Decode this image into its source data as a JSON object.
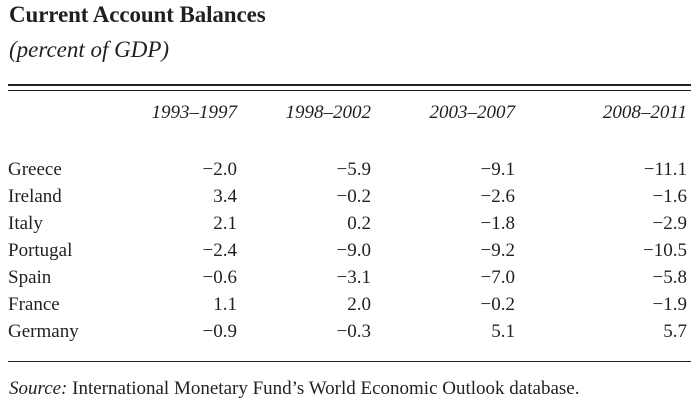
{
  "title": "Current Account Balances",
  "subtitle": "(percent of GDP)",
  "table": {
    "columns": [
      "1993–1997",
      "1998–2002",
      "2003–2007",
      "2008–2011"
    ],
    "rows": [
      {
        "country": "Greece",
        "values": [
          "−2.0",
          "−5.9",
          "−9.1",
          "−11.1"
        ]
      },
      {
        "country": "Ireland",
        "values": [
          "3.4",
          "−0.2",
          "−2.6",
          "−1.6"
        ]
      },
      {
        "country": "Italy",
        "values": [
          "2.1",
          "0.2",
          "−1.8",
          "−2.9"
        ]
      },
      {
        "country": "Portugal",
        "values": [
          "−2.4",
          "−9.0",
          "−9.2",
          "−10.5"
        ]
      },
      {
        "country": "Spain",
        "values": [
          "−0.6",
          "−3.1",
          "−7.0",
          "−5.8"
        ]
      },
      {
        "country": "France",
        "values": [
          "1.1",
          "2.0",
          "−0.2",
          "−1.9"
        ]
      },
      {
        "country": "Germany",
        "values": [
          "−0.9",
          "−0.3",
          "5.1",
          "5.7"
        ]
      }
    ]
  },
  "source": {
    "label": "Source:",
    "text": "International Monetary Fund’s World Economic Outlook database."
  }
}
